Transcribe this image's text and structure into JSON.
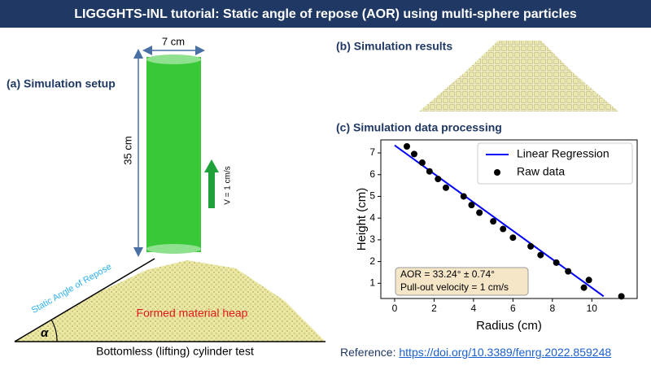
{
  "header": {
    "title": "LIGGGHTS-INL tutorial: Static angle of repose (AOR) using multi-sphere particles"
  },
  "panels": {
    "setup": "(a) Simulation setup",
    "results": "(b) Simulation results",
    "processing": "(c) Simulation data processing"
  },
  "setup_figure": {
    "width_label": "7 cm",
    "height_label": "35 cm",
    "velocity_label": "V = 1 cm/s",
    "angle_label": "Static Angle of Repose",
    "alpha": "α",
    "heap_label": "Formed material heap",
    "caption": "Bottomless (lifting) cylinder test"
  },
  "reference": {
    "label": "Reference:",
    "link": "https://doi.org/10.3389/fenrg.2022.859248"
  },
  "chart_data": {
    "type": "scatter",
    "xlabel": "Radius (cm)",
    "ylabel": "Height (cm)",
    "xlim": [
      -0.7,
      12.3
    ],
    "ylim": [
      0.3,
      7.6
    ],
    "xticks": [
      0,
      2,
      4,
      6,
      8,
      10
    ],
    "yticks": [
      1,
      2,
      3,
      4,
      5,
      6,
      7
    ],
    "legend": "upper right",
    "annotations": [
      "AOR = 33.24° ± 0.74°",
      "Pull-out velocity = 1 cm/s"
    ],
    "series": [
      {
        "name": "Linear Regression",
        "type": "line",
        "color": "#0000ff",
        "x": [
          0,
          10.6
        ],
        "values": [
          7.35,
          0.4
        ]
      },
      {
        "name": "Raw data",
        "type": "scatter",
        "color": "#000000",
        "x": [
          0.62,
          0.99,
          1.4,
          1.77,
          2.2,
          2.6,
          3.5,
          3.9,
          4.3,
          5.0,
          5.5,
          6.0,
          6.9,
          7.4,
          8.2,
          8.8,
          9.6,
          9.85,
          11.5
        ],
        "values": [
          7.3,
          6.95,
          6.55,
          6.15,
          5.8,
          5.4,
          5.0,
          4.6,
          4.25,
          3.85,
          3.5,
          3.1,
          2.7,
          2.3,
          1.95,
          1.55,
          0.8,
          1.15,
          0.4
        ]
      }
    ]
  }
}
